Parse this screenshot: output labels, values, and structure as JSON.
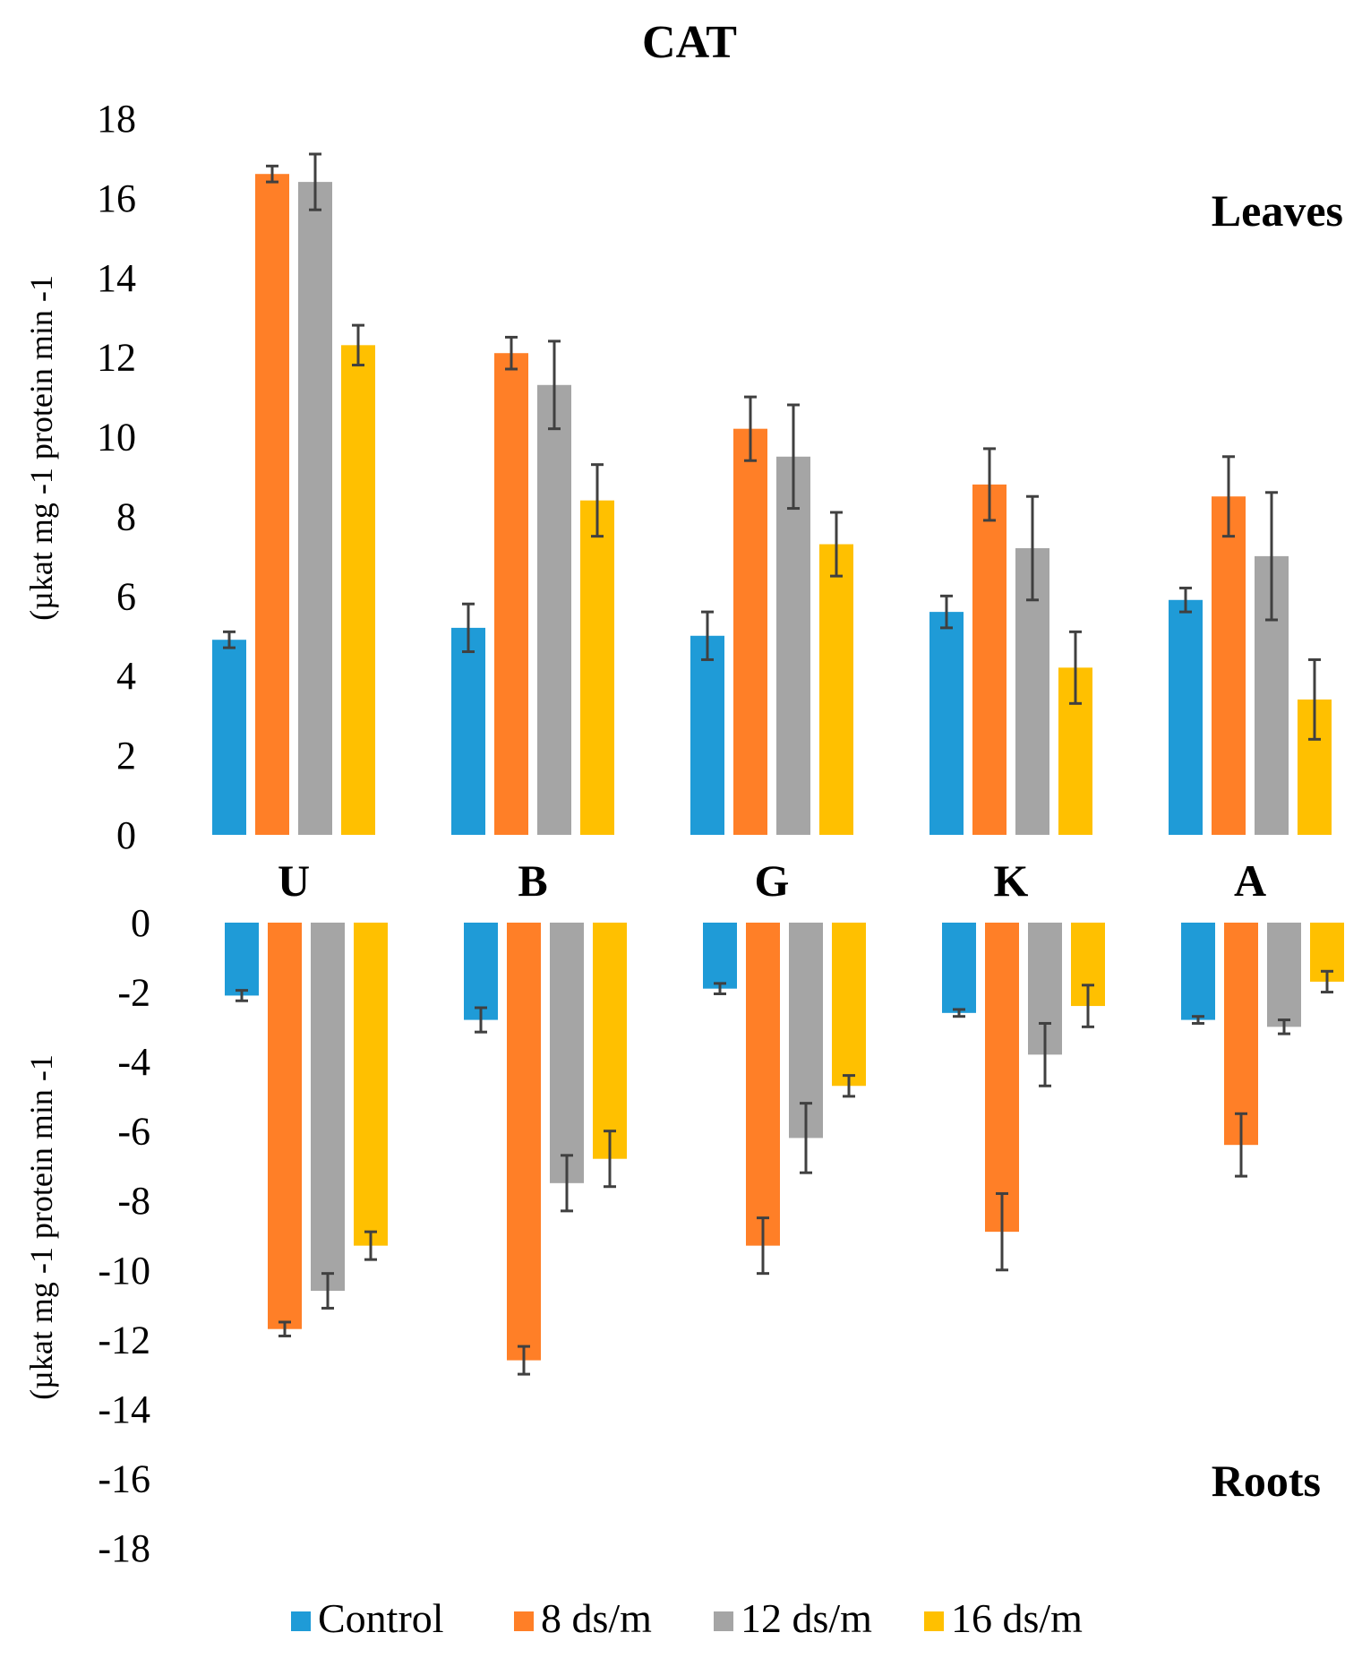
{
  "chart_data": [
    {
      "type": "bar",
      "panel": "Leaves",
      "title": "CAT",
      "ylabel": "(µkat mg -1 protein min -1",
      "categories": [
        "U",
        "B",
        "G",
        "K",
        "A"
      ],
      "ylim": [
        0,
        18
      ],
      "yticks": [
        "0",
        "2",
        "4",
        "6",
        "8",
        "10",
        "12",
        "14",
        "16",
        "18"
      ],
      "series": [
        {
          "name": "Control",
          "color": "#1f9bd7",
          "values": [
            4.9,
            5.2,
            5.0,
            5.6,
            5.9
          ],
          "errors": [
            0.2,
            0.6,
            0.6,
            0.4,
            0.3
          ]
        },
        {
          "name": "8 ds/m",
          "color": "#ff7f27",
          "values": [
            16.6,
            12.1,
            10.2,
            8.8,
            8.5
          ],
          "errors": [
            0.2,
            0.4,
            0.8,
            0.9,
            1.0
          ]
        },
        {
          "name": "12 ds/m",
          "color": "#a5a5a5",
          "values": [
            16.4,
            11.3,
            9.5,
            7.2,
            7.0
          ],
          "errors": [
            0.7,
            1.1,
            1.3,
            1.3,
            1.6
          ]
        },
        {
          "name": "16 ds/m",
          "color": "#ffc000",
          "values": [
            12.3,
            8.4,
            7.3,
            4.2,
            3.4
          ],
          "errors": [
            0.5,
            0.9,
            0.8,
            0.9,
            1.0
          ]
        }
      ]
    },
    {
      "type": "bar",
      "panel": "Roots",
      "ylabel": "(µkat mg -1 protein min -1",
      "categories": [
        "U",
        "B",
        "G",
        "K",
        "A"
      ],
      "ylim": [
        -18,
        0
      ],
      "yticks": [
        "0",
        "-2",
        "-4",
        "-6",
        "-8",
        "-10",
        "-12",
        "-14",
        "-16",
        "-18"
      ],
      "series": [
        {
          "name": "Control",
          "color": "#1f9bd7",
          "values": [
            -2.1,
            -2.8,
            -1.9,
            -2.6,
            -2.8
          ],
          "errors": [
            0.15,
            0.35,
            0.15,
            0.1,
            0.1
          ]
        },
        {
          "name": "8 ds/m",
          "color": "#ff7f27",
          "values": [
            -11.7,
            -12.6,
            -9.3,
            -8.9,
            -6.4
          ],
          "errors": [
            0.2,
            0.4,
            0.8,
            1.1,
            0.9
          ]
        },
        {
          "name": "12 ds/m",
          "color": "#a5a5a5",
          "values": [
            -10.6,
            -7.5,
            -6.2,
            -3.8,
            -3.0
          ],
          "errors": [
            0.5,
            0.8,
            1.0,
            0.9,
            0.2
          ]
        },
        {
          "name": "16 ds/m",
          "color": "#ffc000",
          "values": [
            -9.3,
            -6.8,
            -4.7,
            -2.4,
            -1.7
          ],
          "errors": [
            0.4,
            0.8,
            0.3,
            0.6,
            0.3
          ]
        }
      ]
    }
  ],
  "labels": {
    "title": "CAT",
    "leaves": "Leaves",
    "roots": "Roots"
  },
  "legend": [
    "Control",
    "8 ds/m",
    "12 ds/m",
    "16 ds/m"
  ]
}
